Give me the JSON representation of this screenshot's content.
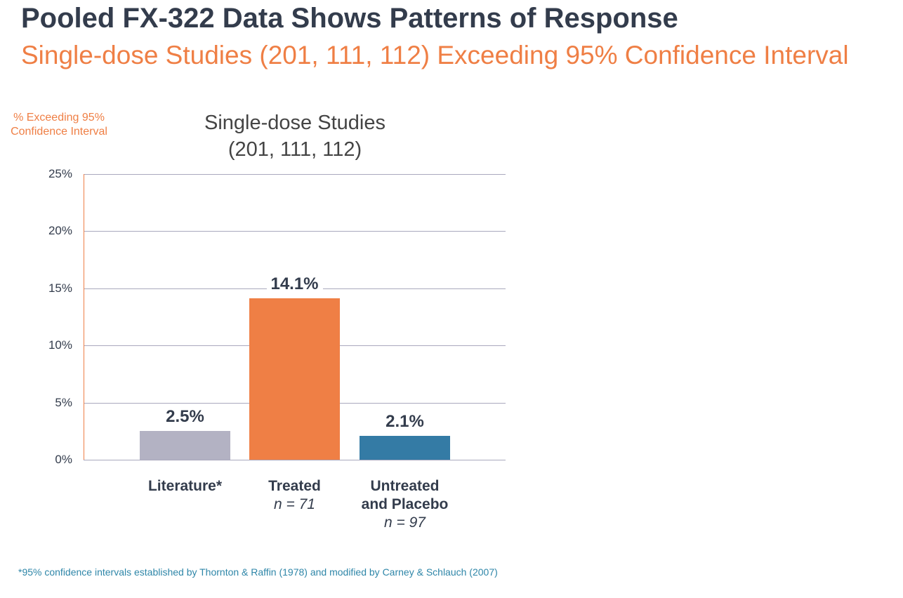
{
  "header": {
    "title": "Pooled FX-322 Data Shows Patterns of Response",
    "subtitle": "Single-dose Studies (201, 111, 112) Exceeding 95% Confidence Interval"
  },
  "chart_data": {
    "type": "bar",
    "title_line1": "Single-dose Studies",
    "title_line2": "(201, 111, 112)",
    "ylabel": "% Exceeding 95% Confidence Interval",
    "ylim": [
      0,
      25
    ],
    "yticks": [
      "0%",
      "5%",
      "10%",
      "15%",
      "20%",
      "25%"
    ],
    "categories": [
      "Literature*",
      "Treated",
      "Untreated and Placebo"
    ],
    "category_lines": [
      [
        "Literature*"
      ],
      [
        "Treated"
      ],
      [
        "Untreated",
        "and Placebo"
      ]
    ],
    "n_labels": [
      "",
      "n = 71",
      "n = 97"
    ],
    "values": [
      2.5,
      14.1,
      2.1
    ],
    "value_labels": [
      "2.5%",
      "14.1%",
      "2.1%"
    ],
    "colors": [
      "#b3b2c3",
      "#ef7f45",
      "#347ba5"
    ],
    "grid": true
  },
  "footnote": "*95% confidence intervals established by Thornton & Raffin (1978) and modified by Carney & Schlauch (2007)"
}
